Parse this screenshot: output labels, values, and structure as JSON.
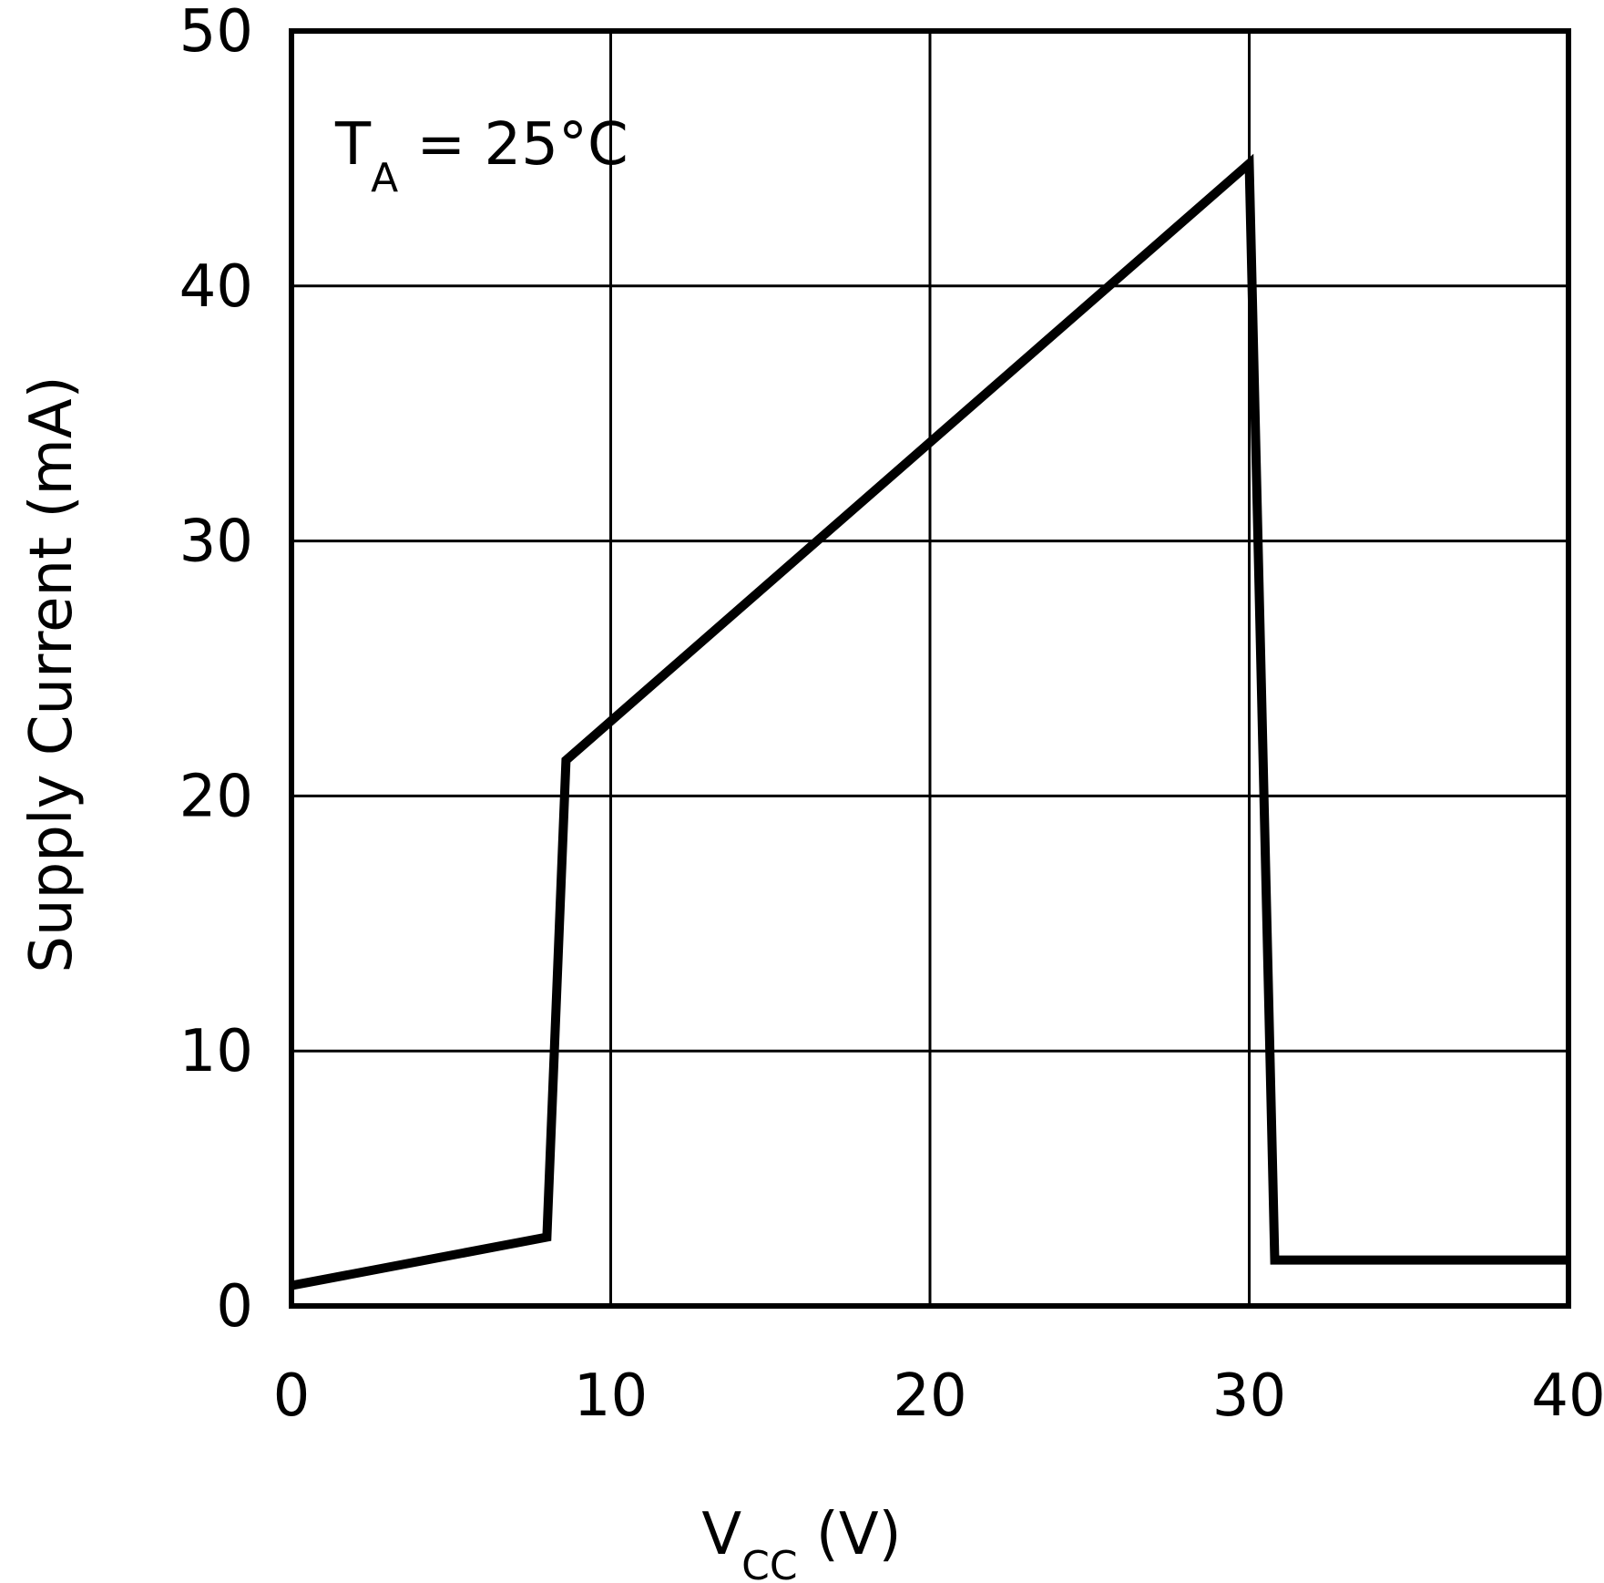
{
  "chart_data": {
    "type": "line",
    "xlabel": "V",
    "xlabel_sub": "CC",
    "xlabel_unit": " (V)",
    "ylabel": "Supply Current (mA)",
    "xlim": [
      0,
      40
    ],
    "ylim": [
      0,
      50
    ],
    "x_ticks": [
      0,
      10,
      20,
      30,
      40
    ],
    "y_ticks": [
      0,
      10,
      20,
      30,
      40,
      50
    ],
    "x_tick_labels": [
      "0",
      "10",
      "20",
      "30",
      "40"
    ],
    "y_tick_labels": [
      "0",
      "10",
      "20",
      "30",
      "40",
      "50"
    ],
    "grid": true,
    "annotation": {
      "main": "T",
      "sub": "A",
      "rest": " = 25°C"
    },
    "series": [
      {
        "color": "#000000",
        "x": [
          0,
          8,
          8.6,
          30,
          30.8,
          40
        ],
        "y": [
          0.8,
          2.7,
          21.4,
          44.8,
          1.8,
          1.8
        ]
      }
    ]
  }
}
